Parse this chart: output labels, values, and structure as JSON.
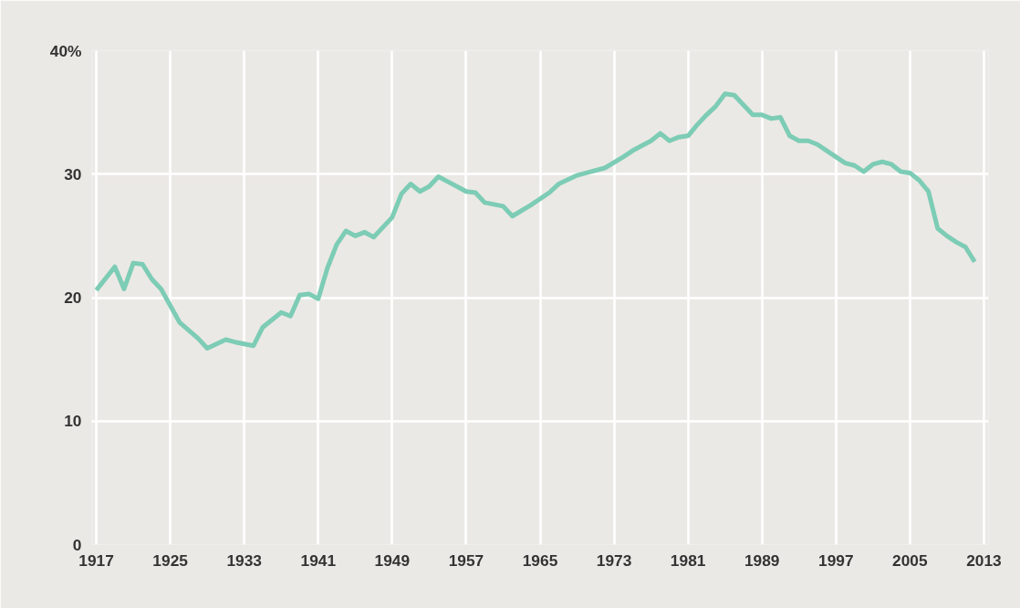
{
  "chart_data": {
    "type": "line",
    "x": [
      1917,
      1919,
      1920,
      1921,
      1922,
      1923,
      1924,
      1926,
      1928,
      1929,
      1931,
      1932,
      1934,
      1935,
      1937,
      1938,
      1939,
      1940,
      1941,
      1942,
      1943,
      1944,
      1945,
      1946,
      1947,
      1949,
      1950,
      1951,
      1952,
      1953,
      1954,
      1955,
      1957,
      1958,
      1959,
      1961,
      1962,
      1964,
      1966,
      1967,
      1969,
      1970,
      1972,
      1974,
      1975,
      1977,
      1978,
      1979,
      1980,
      1981,
      1982,
      1983,
      1984,
      1985,
      1986,
      1987,
      1988,
      1989,
      1990,
      1991,
      1992,
      1993,
      1994,
      1995,
      1996,
      1997,
      1998,
      1999,
      2000,
      2001,
      2002,
      2003,
      2004,
      2005,
      2006,
      2007,
      2008,
      2009,
      2010,
      2011,
      2012
    ],
    "series": [
      {
        "color": "#7dccb5",
        "values": [
          20.6,
          22.5,
          20.7,
          22.8,
          22.7,
          21.5,
          20.7,
          18.0,
          16.7,
          15.9,
          16.6,
          16.4,
          16.1,
          17.6,
          18.8,
          18.5,
          20.2,
          20.3,
          19.9,
          22.4,
          24.3,
          25.4,
          25.0,
          25.3,
          24.9,
          26.5,
          28.4,
          29.2,
          28.6,
          29.0,
          29.8,
          29.4,
          28.6,
          28.5,
          27.7,
          27.4,
          26.6,
          27.5,
          28.5,
          29.2,
          29.9,
          30.1,
          30.5,
          31.4,
          31.9,
          32.7,
          33.3,
          32.7,
          33.0,
          33.1,
          34.0,
          34.8,
          35.5,
          36.5,
          36.4,
          35.6,
          34.8,
          34.8,
          34.5,
          34.6,
          33.1,
          32.7,
          32.7,
          32.4,
          31.9,
          31.4,
          30.9,
          30.7,
          30.2,
          30.8,
          31.0,
          30.8,
          30.2,
          30.1,
          29.5,
          28.6,
          25.6,
          25.0,
          24.5,
          24.1,
          22.9
        ]
      }
    ],
    "xlim": [
      1916.5,
      2013.5
    ],
    "xticks": [
      1917,
      1925,
      1933,
      1941,
      1949,
      1957,
      1965,
      1973,
      1981,
      1989,
      1997,
      2005,
      2013
    ],
    "ylim": [
      0,
      40
    ],
    "yticks": [
      0,
      10,
      20,
      30,
      {
        "value": 40,
        "label": "40%"
      }
    ],
    "grid": true,
    "marker": "none",
    "line_style": "solid"
  }
}
